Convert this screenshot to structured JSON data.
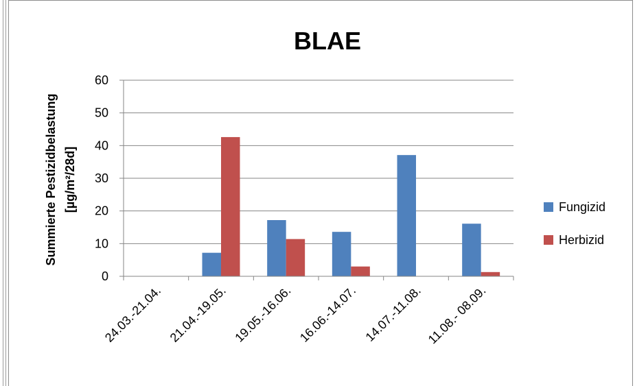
{
  "chart_data": {
    "type": "bar",
    "title": "BLAE",
    "ylabel": [
      "Summierte Pestizidbelastung",
      "[µg/m²/28d]"
    ],
    "xlabel": "",
    "categories": [
      "24.03.-21.04.",
      "21.04.-19.05.",
      "19.05.-16.06.",
      "16.06.-14.07.",
      "14.07.-11.08.",
      "11.08.- 08.09."
    ],
    "series": [
      {
        "name": "Fungizid",
        "color": "#4f81bd",
        "values": [
          0,
          7.2,
          17.2,
          13.6,
          37.1,
          16.1
        ]
      },
      {
        "name": "Herbizid",
        "color": "#c0504d",
        "values": [
          0,
          42.6,
          11.4,
          3.0,
          0,
          1.3
        ]
      }
    ],
    "ylim": [
      0,
      60
    ],
    "yticks": [
      0,
      10,
      20,
      30,
      40,
      50,
      60
    ],
    "grid": true,
    "legend_position": "right"
  }
}
